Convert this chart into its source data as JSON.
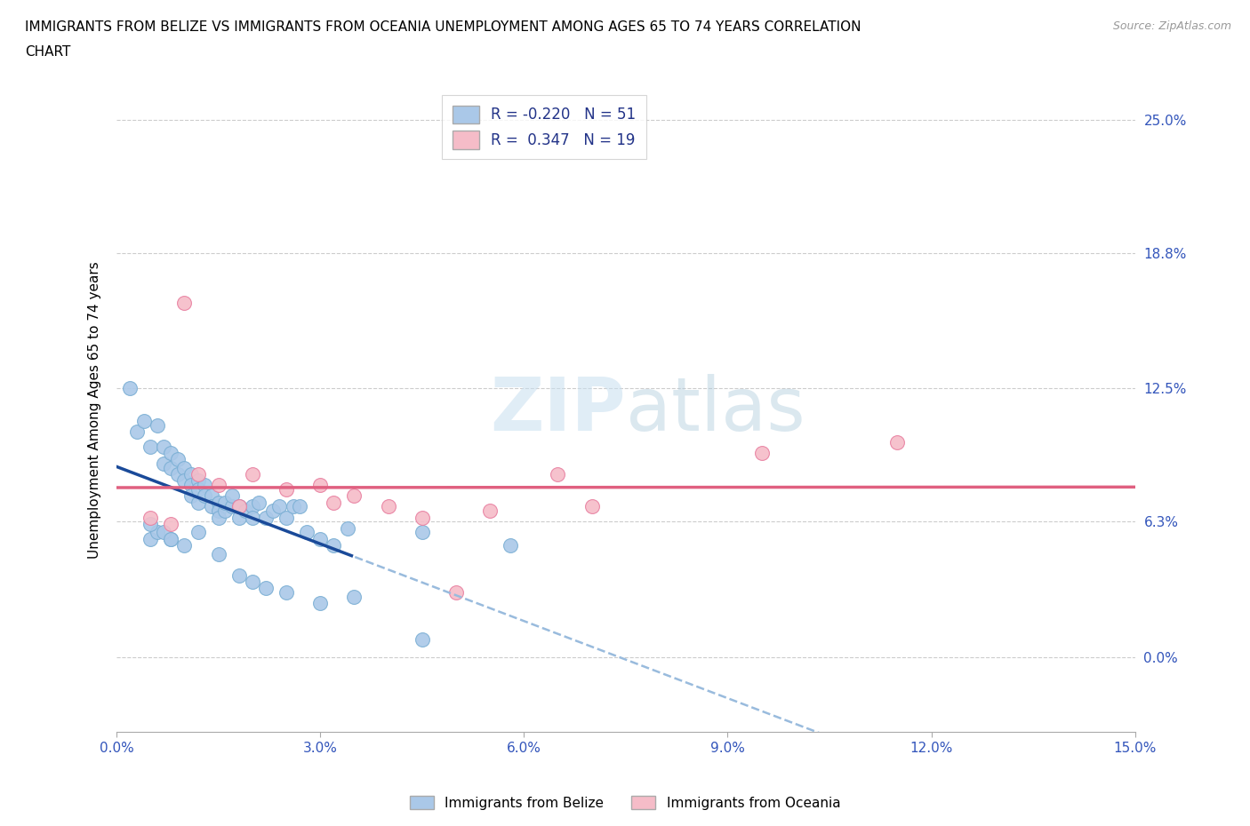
{
  "title_line1": "IMMIGRANTS FROM BELIZE VS IMMIGRANTS FROM OCEANIA UNEMPLOYMENT AMONG AGES 65 TO 74 YEARS CORRELATION",
  "title_line2": "CHART",
  "source": "Source: ZipAtlas.com",
  "xlabel_tick_vals": [
    0.0,
    3.0,
    6.0,
    9.0,
    12.0,
    15.0
  ],
  "ylabel_tick_vals": [
    0.0,
    6.3,
    12.5,
    18.8,
    25.0
  ],
  "ylabel_label": "Unemployment Among Ages 65 to 74 years",
  "xmin": 0.0,
  "xmax": 15.0,
  "ymin": -3.5,
  "ymax": 26.5,
  "belize_color": "#aac8e8",
  "belize_edge_color": "#7bafd4",
  "oceania_color": "#f5bcc8",
  "oceania_edge_color": "#e87fa0",
  "belize_R": -0.22,
  "belize_N": 51,
  "oceania_R": 0.347,
  "oceania_N": 19,
  "belize_line_color": "#1a4a99",
  "belize_dash_color": "#99bbdd",
  "oceania_line_color": "#e06080",
  "watermark_color": "#c8dff0",
  "belize_x": [
    0.2,
    0.3,
    0.4,
    0.5,
    0.6,
    0.7,
    0.7,
    0.8,
    0.8,
    0.9,
    0.9,
    1.0,
    1.0,
    1.1,
    1.1,
    1.1,
    1.2,
    1.2,
    1.2,
    1.3,
    1.3,
    1.4,
    1.4,
    1.5,
    1.5,
    1.5,
    1.6,
    1.6,
    1.7,
    1.7,
    1.8,
    1.8,
    1.9,
    2.0,
    2.0,
    2.1,
    2.2,
    2.3,
    2.4,
    2.5,
    2.6,
    2.7,
    2.8,
    3.0,
    3.2,
    3.4,
    0.5,
    0.6,
    0.8,
    4.5,
    5.8
  ],
  "belize_y": [
    12.5,
    10.5,
    11.0,
    9.8,
    10.8,
    9.8,
    9.0,
    9.5,
    8.8,
    9.2,
    8.5,
    8.8,
    8.2,
    8.5,
    8.0,
    7.5,
    8.2,
    7.8,
    7.2,
    8.0,
    7.5,
    7.5,
    7.0,
    7.2,
    6.8,
    6.5,
    6.8,
    7.2,
    7.0,
    7.5,
    6.5,
    7.0,
    6.8,
    7.0,
    6.5,
    7.2,
    6.5,
    6.8,
    7.0,
    6.5,
    7.0,
    7.0,
    5.8,
    5.5,
    5.2,
    6.0,
    5.5,
    5.8,
    5.5,
    5.8,
    5.2
  ],
  "belize_y_below": [
    6.2,
    5.8,
    5.5,
    5.2,
    5.8,
    4.8,
    3.8,
    3.5,
    3.2,
    3.0,
    2.5,
    2.8,
    0.8
  ],
  "belize_x_below": [
    0.5,
    0.7,
    0.8,
    1.0,
    1.2,
    1.5,
    1.8,
    2.0,
    2.2,
    2.5,
    3.0,
    3.5,
    4.5
  ],
  "oceania_x": [
    0.5,
    0.8,
    1.2,
    1.5,
    1.8,
    2.0,
    2.5,
    3.0,
    3.5,
    4.0,
    5.5,
    6.5,
    7.0,
    3.2,
    4.5,
    9.5,
    11.5,
    1.0,
    5.0
  ],
  "oceania_y": [
    6.5,
    6.2,
    8.5,
    8.0,
    7.0,
    8.5,
    7.8,
    8.0,
    7.5,
    7.0,
    6.8,
    8.5,
    7.0,
    7.2,
    6.5,
    9.5,
    10.0,
    16.5,
    3.0
  ]
}
